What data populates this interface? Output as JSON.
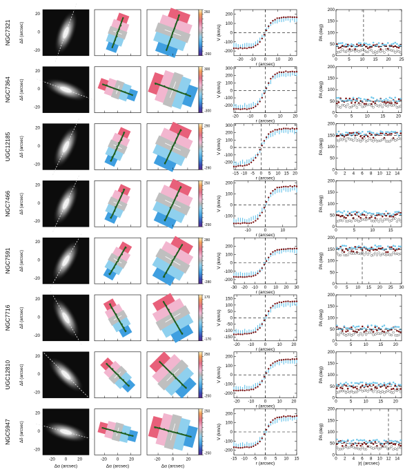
{
  "figure": {
    "galaxies": [
      {
        "name": "NGC7321",
        "cbar": [
          "260",
          "-260"
        ],
        "pa_major": 20,
        "pa_minor": 55,
        "vel": {
          "xlim": [
            -25,
            25
          ],
          "xt": [
            "-20",
            "-10",
            "0",
            "10",
            "20"
          ],
          "ylim": [
            -250,
            250
          ],
          "yt": [
            "-200",
            "-100",
            "0",
            "100",
            "200"
          ]
        },
        "pa": {
          "xlim": [
            0,
            25
          ],
          "xt": [
            "0",
            "5",
            "10",
            "15",
            "20",
            "25"
          ],
          "ylim": [
            0,
            200
          ],
          "yt": [
            "0",
            "50",
            "100",
            "150",
            "200"
          ],
          "vline": 10.5
        }
      },
      {
        "name": "NGC7364",
        "cbar": [
          "300",
          "-300"
        ],
        "pa_major": -70,
        "pa_minor": -20,
        "vel": {
          "xlim": [
            -21,
            21
          ],
          "xt": [
            "-20",
            "-10",
            "0",
            "10",
            "20"
          ],
          "ylim": [
            -300,
            320
          ],
          "yt": [
            "-200",
            "-100",
            "0",
            "100",
            "200",
            "300"
          ]
        },
        "pa": {
          "xlim": [
            0,
            21
          ],
          "xt": [
            "0",
            "5",
            "10",
            "15",
            "20"
          ],
          "ylim": [
            0,
            200
          ],
          "yt": [
            "0",
            "50",
            "100",
            "150",
            "200"
          ],
          "vline": null
        }
      },
      {
        "name": "UGC12185",
        "cbar": [
          "290",
          "-290"
        ],
        "pa_major": 25,
        "pa_minor": 60,
        "vel": {
          "xlim": [
            -16,
            21
          ],
          "xt": [
            "-15",
            "-10",
            "-5",
            "0",
            "5",
            "10",
            "15",
            "20"
          ],
          "ylim": [
            -300,
            320
          ],
          "yt": [
            "-200",
            "-100",
            "0",
            "100",
            "200",
            "300"
          ]
        },
        "pa": {
          "xlim": [
            0,
            15
          ],
          "xt": [
            "0",
            "2",
            "4",
            "6",
            "8",
            "10",
            "12",
            "14"
          ],
          "ylim": [
            0,
            200
          ],
          "yt": [
            "0",
            "50",
            "100",
            "150",
            "200"
          ],
          "vline": null
        }
      },
      {
        "name": "NGC7466",
        "cbar": [
          "250",
          "-250"
        ],
        "pa_major": 25,
        "pa_minor": 70,
        "vel": {
          "xlim": [
            -18,
            18
          ],
          "xt": [
            "-10",
            "0",
            "10"
          ],
          "ylim": [
            -200,
            220
          ],
          "yt": [
            "-100",
            "0",
            "100",
            "200"
          ]
        },
        "pa": {
          "xlim": [
            0,
            18
          ],
          "xt": [
            "0",
            "5",
            "10",
            "15"
          ],
          "ylim": [
            0,
            200
          ],
          "yt": [
            "0",
            "50",
            "100",
            "150",
            "200"
          ],
          "vline": null
        }
      },
      {
        "name": "NGC7591",
        "cbar": [
          "280",
          "-280"
        ],
        "pa_major": 30,
        "pa_minor": 100,
        "vel": {
          "xlim": [
            -30,
            30
          ],
          "xt": [
            "-30",
            "-20",
            "-10",
            "0",
            "10",
            "20",
            "30"
          ],
          "ylim": [
            -250,
            300
          ],
          "yt": [
            "-200",
            "-100",
            "0",
            "100",
            "200"
          ]
        },
        "pa": {
          "xlim": [
            0,
            30
          ],
          "xt": [
            "0",
            "5",
            "10",
            "15",
            "20",
            "25",
            "30"
          ],
          "ylim": [
            0,
            200
          ],
          "yt": [
            "0",
            "50",
            "100",
            "150",
            "200"
          ],
          "vline": 12
        }
      },
      {
        "name": "NGC7716",
        "cbar": [
          "170",
          "-170"
        ],
        "pa_major": -30,
        "pa_minor": 50,
        "vel": {
          "xlim": [
            -22,
            22
          ],
          "xt": [
            "-20",
            "-10",
            "0",
            "10",
            "20"
          ],
          "ylim": [
            -180,
            180
          ],
          "yt": [
            "-150",
            "-100",
            "-50",
            "0",
            "50",
            "100",
            "150"
          ]
        },
        "pa": {
          "xlim": [
            0,
            22
          ],
          "xt": [
            "0",
            "5",
            "10",
            "15",
            "20"
          ],
          "ylim": [
            0,
            200
          ],
          "yt": [
            "0",
            "50",
            "100",
            "150",
            "200"
          ],
          "vline": null
        }
      },
      {
        "name": "UGC12810",
        "cbar": [
          "250",
          "-250"
        ],
        "pa_major": -45,
        "pa_minor": 30,
        "vel": {
          "xlim": [
            -22,
            22
          ],
          "xt": [
            "-20",
            "-10",
            "0",
            "10",
            "20"
          ],
          "ylim": [
            -250,
            250
          ],
          "yt": [
            "-200",
            "-100",
            "0",
            "100",
            "200"
          ]
        },
        "pa": {
          "xlim": [
            0,
            22
          ],
          "xt": [
            "0",
            "5",
            "10",
            "15",
            "20"
          ],
          "ylim": [
            0,
            200
          ],
          "yt": [
            "0",
            "50",
            "100",
            "150",
            "200"
          ],
          "vline": null
        }
      },
      {
        "name": "NGC5947",
        "cbar": [
          "250",
          "-250"
        ],
        "pa_major": -75,
        "pa_minor": -10,
        "vel": {
          "xlim": [
            -15,
            15
          ],
          "xt": [
            "-15",
            "-10",
            "-5",
            "0",
            "5",
            "10",
            "15"
          ],
          "ylim": [
            -250,
            250
          ],
          "yt": [
            "-200",
            "-100",
            "0",
            "100",
            "200"
          ]
        },
        "pa": {
          "xlim": [
            0,
            15
          ],
          "xt": [
            "0",
            "2",
            "4",
            "6",
            "8",
            "10",
            "12",
            "14"
          ],
          "ylim": [
            0,
            200
          ],
          "yt": [
            "0",
            "50",
            "100",
            "150",
            "200"
          ],
          "vline": 12
        }
      }
    ],
    "labels": {
      "dec_axis": "Δδ (arcsec)",
      "ra_axis": "Δα (arcsec)",
      "map_ticks": [
        "-20",
        "0",
        "20"
      ],
      "vel_x": "r (arcsec)",
      "vel_y": "V (km/s)",
      "pa_y": "PA (deg)",
      "last_pa_x": "|r| (arcsec)"
    },
    "colors": {
      "points_red": "#7a1010",
      "points_blue": "#6ec6ea",
      "trace_green": "#1f5e1f"
    }
  }
}
